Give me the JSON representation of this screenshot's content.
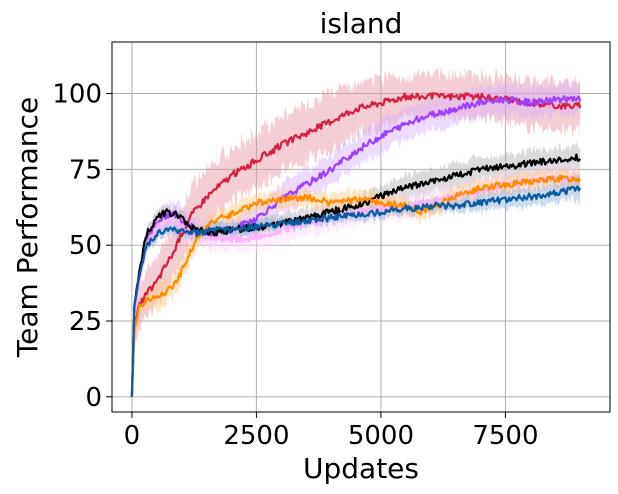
{
  "chart_data": {
    "type": "line",
    "title": "island",
    "xlabel": "Updates",
    "ylabel": "Team Performance",
    "xlim": [
      -400,
      9600
    ],
    "ylim": [
      -5,
      117
    ],
    "xticks": [
      0,
      2500,
      5000,
      7500
    ],
    "xtick_labels": [
      "0",
      "2500",
      "5000",
      "7500"
    ],
    "yticks": [
      0,
      25,
      50,
      75,
      100
    ],
    "ytick_labels": [
      "0",
      "25",
      "50",
      "75",
      "100"
    ],
    "grid": true,
    "legend": "none",
    "series": [
      {
        "color": "#d62040",
        "band_color": "#e8909f",
        "x": [
          0,
          50,
          150,
          300,
          500,
          700,
          850,
          1000,
          1200,
          1500,
          2000,
          2500,
          3000,
          3500,
          4000,
          4500,
          5000,
          5500,
          6000,
          6500,
          7000,
          7500,
          8000,
          8500,
          9000
        ],
        "y": [
          0,
          25,
          30,
          34,
          38,
          44,
          48,
          54,
          60,
          66,
          73,
          78,
          83,
          87,
          91,
          95,
          97,
          99,
          99,
          99,
          99,
          98,
          97,
          96,
          96
        ],
        "band": [
          8,
          8,
          8,
          8,
          8,
          8,
          8,
          8,
          9,
          9,
          9,
          9,
          9,
          9,
          9,
          8,
          8,
          7,
          7,
          7,
          7,
          7,
          8,
          8,
          8
        ]
      },
      {
        "color": "#a040ff",
        "band_color": "#d8b0ff",
        "x": [
          0,
          50,
          150,
          300,
          500,
          700,
          900,
          1100,
          1300,
          1600,
          2000,
          2500,
          3000,
          3500,
          4000,
          4500,
          5000,
          5500,
          6000,
          6500,
          7000,
          7500,
          8000,
          8500,
          9000
        ],
        "y": [
          0,
          28,
          40,
          52,
          58,
          60,
          60,
          57,
          55,
          54,
          55,
          59,
          65,
          70,
          75,
          81,
          86,
          90,
          93,
          95,
          97,
          98,
          97,
          98,
          98
        ],
        "band": [
          3,
          3,
          4,
          4,
          4,
          4,
          4,
          4,
          4,
          4,
          4,
          4,
          5,
          5,
          5,
          5,
          5,
          5,
          5,
          5,
          5,
          5,
          5,
          5,
          5
        ]
      },
      {
        "color": "#000000",
        "band_color": "#b0b0b0",
        "x": [
          0,
          50,
          150,
          300,
          500,
          700,
          900,
          1100,
          1300,
          1600,
          2000,
          2500,
          3000,
          3500,
          4000,
          4500,
          5000,
          5500,
          6000,
          6500,
          7000,
          7500,
          8000,
          8500,
          9000
        ],
        "y": [
          0,
          30,
          42,
          54,
          59,
          61,
          60,
          57,
          55,
          54,
          55,
          56,
          57,
          59,
          61,
          63,
          66,
          69,
          71,
          73,
          75,
          76,
          77,
          78,
          79
        ],
        "band": [
          2,
          2,
          2,
          2,
          2,
          2,
          2,
          2,
          2,
          2,
          2,
          3,
          3,
          3,
          3,
          3,
          3,
          4,
          4,
          4,
          4,
          4,
          4,
          4,
          4
        ]
      },
      {
        "color": "#ffb0ff",
        "band_color": "#ffd8ff",
        "x": [
          0,
          50,
          150,
          300,
          500,
          700,
          900,
          1100,
          1400,
          1800,
          2200,
          2600,
          3000,
          3500,
          4000,
          4500,
          5000,
          5500,
          6000,
          6500,
          7000,
          7500,
          8000,
          8500,
          9000
        ],
        "y": [
          0,
          28,
          38,
          50,
          56,
          58,
          57,
          55,
          53,
          52,
          52,
          53,
          55,
          57,
          59,
          61,
          62,
          63,
          64,
          66,
          68,
          70,
          71,
          72,
          72
        ],
        "band": [
          3,
          3,
          3,
          4,
          4,
          4,
          4,
          4,
          4,
          4,
          4,
          4,
          4,
          4,
          4,
          4,
          4,
          4,
          4,
          4,
          4,
          4,
          4,
          4,
          4
        ]
      },
      {
        "color": "#ff8c00",
        "band_color": "#ffc880",
        "x": [
          0,
          50,
          150,
          300,
          500,
          700,
          900,
          1100,
          1300,
          1500,
          1800,
          2100,
          2500,
          3000,
          3500,
          4000,
          4500,
          5000,
          5500,
          5800,
          6100,
          6500,
          7000,
          7500,
          8000,
          8500,
          9000
        ],
        "y": [
          0,
          22,
          30,
          32,
          33,
          35,
          38,
          45,
          52,
          56,
          59,
          61,
          64,
          65,
          66,
          64,
          65,
          64,
          63,
          61,
          63,
          66,
          69,
          70,
          71,
          72,
          72
        ],
        "band": [
          3,
          3,
          3,
          3,
          4,
          4,
          4,
          4,
          3,
          3,
          3,
          3,
          3,
          3,
          3,
          3,
          3,
          3,
          3,
          3,
          3,
          3,
          3,
          3,
          3,
          3,
          3
        ]
      },
      {
        "color": "#0a5aa0",
        "band_color": "#8ab0d8",
        "x": [
          0,
          50,
          150,
          300,
          500,
          700,
          900,
          1100,
          1300,
          1600,
          2000,
          2500,
          3000,
          3500,
          4000,
          4500,
          5000,
          5500,
          6000,
          6500,
          7000,
          7500,
          8000,
          8500,
          9000
        ],
        "y": [
          0,
          30,
          40,
          50,
          54,
          55,
          55,
          54,
          54,
          55,
          55,
          56,
          57,
          58,
          59,
          60,
          61,
          62,
          63,
          63,
          64,
          65,
          66,
          67,
          69
        ],
        "band": [
          2,
          2,
          2,
          2,
          2,
          2,
          2,
          2,
          2,
          2,
          2,
          2,
          2,
          2,
          2,
          2,
          2,
          2,
          2,
          2,
          3,
          3,
          3,
          3,
          4
        ]
      }
    ]
  }
}
